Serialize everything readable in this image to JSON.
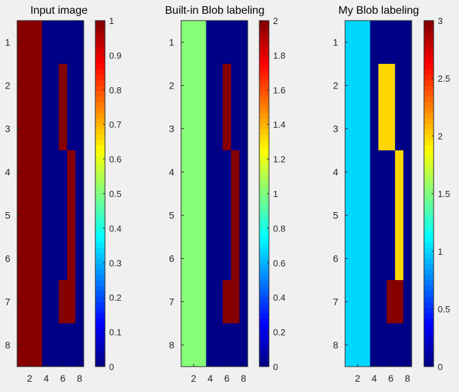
{
  "chart_data": [
    {
      "type": "heatmap",
      "title": "Input image",
      "x": [
        1,
        2,
        3,
        4,
        5,
        6,
        7,
        8
      ],
      "y": [
        1,
        2,
        3,
        4,
        5,
        6,
        7,
        8
      ],
      "xticks": [
        "2",
        "4",
        "6",
        "8"
      ],
      "yticks": [
        "1",
        "2",
        "3",
        "4",
        "5",
        "6",
        "7",
        "8"
      ],
      "values": [
        [
          1,
          1,
          1,
          0,
          0,
          0,
          0,
          0
        ],
        [
          1,
          1,
          1,
          0,
          0,
          1,
          0,
          0
        ],
        [
          1,
          1,
          1,
          0,
          0,
          1,
          0,
          0
        ],
        [
          1,
          1,
          1,
          0,
          0,
          0,
          1,
          0
        ],
        [
          1,
          1,
          1,
          0,
          0,
          0,
          1,
          0
        ],
        [
          1,
          1,
          1,
          0,
          0,
          0,
          1,
          0
        ],
        [
          1,
          1,
          1,
          0,
          0,
          1,
          1,
          0
        ],
        [
          1,
          1,
          1,
          0,
          0,
          0,
          0,
          0
        ]
      ],
      "colorbar": {
        "clim": [
          0,
          1
        ],
        "ticks": [
          "0",
          "0.1",
          "0.2",
          "0.3",
          "0.4",
          "0.5",
          "0.6",
          "0.7",
          "0.8",
          "0.9",
          "1"
        ]
      }
    },
    {
      "type": "heatmap",
      "title": "Built-in Blob labeling",
      "x": [
        1,
        2,
        3,
        4,
        5,
        6,
        7,
        8
      ],
      "y": [
        1,
        2,
        3,
        4,
        5,
        6,
        7,
        8
      ],
      "xticks": [
        "2",
        "4",
        "6",
        "8"
      ],
      "yticks": [
        "1",
        "2",
        "3",
        "4",
        "5",
        "6",
        "7",
        "8"
      ],
      "values": [
        [
          1,
          1,
          1,
          0,
          0,
          0,
          0,
          0
        ],
        [
          1,
          1,
          1,
          0,
          0,
          2,
          0,
          0
        ],
        [
          1,
          1,
          1,
          0,
          0,
          2,
          0,
          0
        ],
        [
          1,
          1,
          1,
          0,
          0,
          0,
          2,
          0
        ],
        [
          1,
          1,
          1,
          0,
          0,
          0,
          2,
          0
        ],
        [
          1,
          1,
          1,
          0,
          0,
          0,
          2,
          0
        ],
        [
          1,
          1,
          1,
          0,
          0,
          2,
          2,
          0
        ],
        [
          1,
          1,
          1,
          0,
          0,
          0,
          0,
          0
        ]
      ],
      "colorbar": {
        "clim": [
          0,
          2
        ],
        "ticks": [
          "0",
          "0.2",
          "0.4",
          "0.6",
          "0.8",
          "1",
          "1.2",
          "1.4",
          "1.6",
          "1.8",
          "2"
        ]
      }
    },
    {
      "type": "heatmap",
      "title": "My Blob labeling",
      "x": [
        1,
        2,
        3,
        4,
        5,
        6,
        7,
        8
      ],
      "y": [
        1,
        2,
        3,
        4,
        5,
        6,
        7,
        8
      ],
      "xticks": [
        "2",
        "4",
        "6",
        "8"
      ],
      "yticks": [
        "1",
        "2",
        "3",
        "4",
        "5",
        "6",
        "7",
        "8"
      ],
      "values": [
        [
          1,
          1,
          1,
          0,
          0,
          0,
          0,
          0
        ],
        [
          1,
          1,
          1,
          0,
          2,
          2,
          0,
          0
        ],
        [
          1,
          1,
          1,
          0,
          2,
          2,
          0,
          0
        ],
        [
          1,
          1,
          1,
          0,
          0,
          0,
          2,
          0
        ],
        [
          1,
          1,
          1,
          0,
          0,
          0,
          2,
          0
        ],
        [
          1,
          1,
          1,
          0,
          0,
          0,
          2,
          0
        ],
        [
          1,
          1,
          1,
          0,
          0,
          3,
          3,
          0
        ],
        [
          1,
          1,
          1,
          0,
          0,
          0,
          0,
          0
        ]
      ],
      "colorbar": {
        "clim": [
          0,
          3
        ],
        "ticks": [
          "0",
          "0.5",
          "1",
          "1.5",
          "2",
          "2.5",
          "3"
        ]
      }
    }
  ],
  "colormap": "jet"
}
